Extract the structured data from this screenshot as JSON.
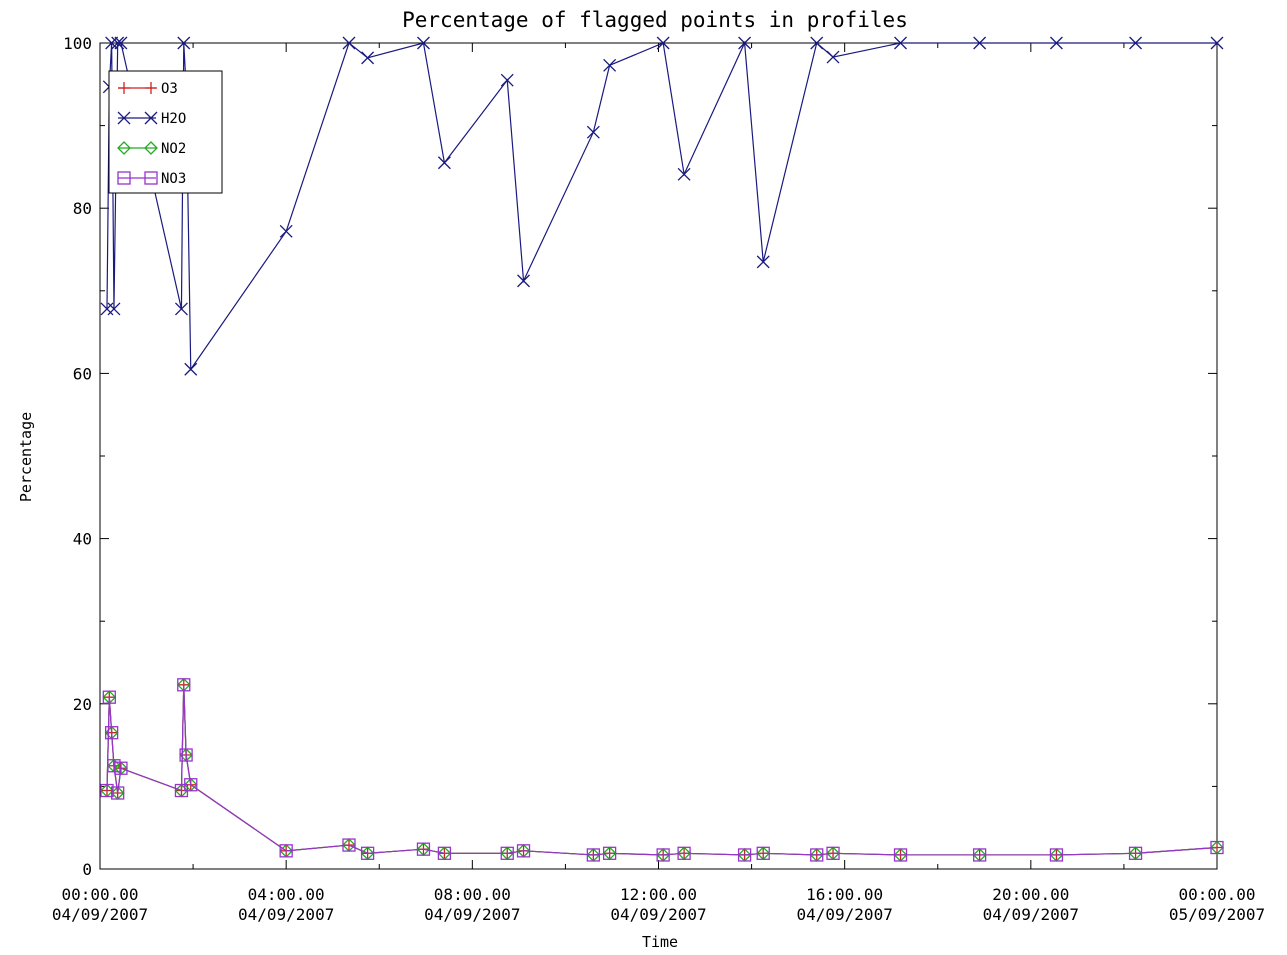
{
  "chart_data": {
    "type": "line",
    "title": "Percentage of flagged points in profiles",
    "xlabel": "Time",
    "ylabel": "Percentage",
    "ylim": [
      0,
      100
    ],
    "xlim_hours": [
      0,
      24
    ],
    "y_ticks": [
      "0",
      "20",
      "40",
      "60",
      "80",
      "100"
    ],
    "x_ticks": [
      {
        "h": 0,
        "time": "00:00.00",
        "date": "04/09/2007"
      },
      {
        "h": 4,
        "time": "04:00.00",
        "date": "04/09/2007"
      },
      {
        "h": 8,
        "time": "08:00.00",
        "date": "04/09/2007"
      },
      {
        "h": 12,
        "time": "12:00.00",
        "date": "04/09/2007"
      },
      {
        "h": 16,
        "time": "16:00.00",
        "date": "04/09/2007"
      },
      {
        "h": 20,
        "time": "20:00.00",
        "date": "04/09/2007"
      },
      {
        "h": 24,
        "time": "00:00.00",
        "date": "05/09/2007"
      }
    ],
    "legend_position": "top-left",
    "series": [
      {
        "name": "O3",
        "color": "#cc2222",
        "marker": "plus",
        "x": [
          0.15,
          0.2,
          0.25,
          0.3,
          0.38,
          0.45,
          1.75,
          1.8,
          1.85,
          1.95,
          4.0,
          5.35,
          5.75,
          6.95,
          7.4,
          8.75,
          9.1,
          10.6,
          10.95,
          12.1,
          12.55,
          13.85,
          14.25,
          15.4,
          15.75,
          17.2,
          18.9,
          20.55,
          22.25,
          24.0
        ],
        "y": [
          9.5,
          20.8,
          16.5,
          12.5,
          9.2,
          12.2,
          9.5,
          22.3,
          13.8,
          10.2,
          2.2,
          2.9,
          1.9,
          2.4,
          1.9,
          1.9,
          2.2,
          1.7,
          1.9,
          1.7,
          1.9,
          1.7,
          1.9,
          1.7,
          1.9,
          1.7,
          1.7,
          1.7,
          1.9,
          2.6
        ]
      },
      {
        "name": "H2O",
        "color": "#1a1a80",
        "marker": "x",
        "x": [
          0.15,
          0.2,
          0.25,
          0.3,
          0.38,
          0.45,
          1.75,
          1.8,
          1.85,
          1.95,
          4.0,
          5.35,
          5.75,
          6.95,
          7.4,
          8.75,
          9.1,
          10.6,
          10.95,
          12.1,
          12.55,
          13.85,
          14.25,
          15.4,
          15.75,
          17.2,
          18.9,
          20.55,
          22.25,
          24.0
        ],
        "y": [
          67.8,
          94.7,
          100,
          67.8,
          100,
          100,
          67.8,
          100,
          94.7,
          60.5,
          77.2,
          100,
          98.2,
          100,
          85.5,
          95.5,
          71.2,
          89.2,
          97.3,
          100,
          84.1,
          100,
          73.5,
          100,
          98.3,
          100,
          100,
          100,
          100,
          100
        ]
      },
      {
        "name": "NO2",
        "color": "#22aa22",
        "marker": "diamond",
        "x": [
          0.15,
          0.2,
          0.25,
          0.3,
          0.38,
          0.45,
          1.75,
          1.8,
          1.85,
          1.95,
          4.0,
          5.35,
          5.75,
          6.95,
          7.4,
          8.75,
          9.1,
          10.6,
          10.95,
          12.1,
          12.55,
          13.85,
          14.25,
          15.4,
          15.75,
          17.2,
          18.9,
          20.55,
          22.25,
          24.0
        ],
        "y": [
          9.5,
          20.8,
          16.5,
          12.5,
          9.2,
          12.2,
          9.5,
          22.3,
          13.8,
          10.2,
          2.2,
          2.9,
          1.9,
          2.4,
          1.9,
          1.9,
          2.2,
          1.7,
          1.9,
          1.7,
          1.9,
          1.7,
          1.9,
          1.7,
          1.9,
          1.7,
          1.7,
          1.7,
          1.9,
          2.6
        ]
      },
      {
        "name": "NO3",
        "color": "#9933cc",
        "marker": "square",
        "x": [
          0.15,
          0.2,
          0.25,
          0.3,
          0.38,
          0.45,
          1.75,
          1.8,
          1.85,
          1.95,
          4.0,
          5.35,
          5.75,
          6.95,
          7.4,
          8.75,
          9.1,
          10.6,
          10.95,
          12.1,
          12.55,
          13.85,
          14.25,
          15.4,
          15.75,
          17.2,
          18.9,
          20.55,
          22.25,
          24.0
        ],
        "y": [
          9.5,
          20.8,
          16.5,
          12.5,
          9.2,
          12.2,
          9.5,
          22.3,
          13.8,
          10.2,
          2.2,
          2.9,
          1.9,
          2.4,
          1.9,
          1.9,
          2.2,
          1.7,
          1.9,
          1.7,
          1.9,
          1.7,
          1.9,
          1.7,
          1.9,
          1.7,
          1.7,
          1.7,
          1.9,
          2.6
        ]
      }
    ]
  }
}
